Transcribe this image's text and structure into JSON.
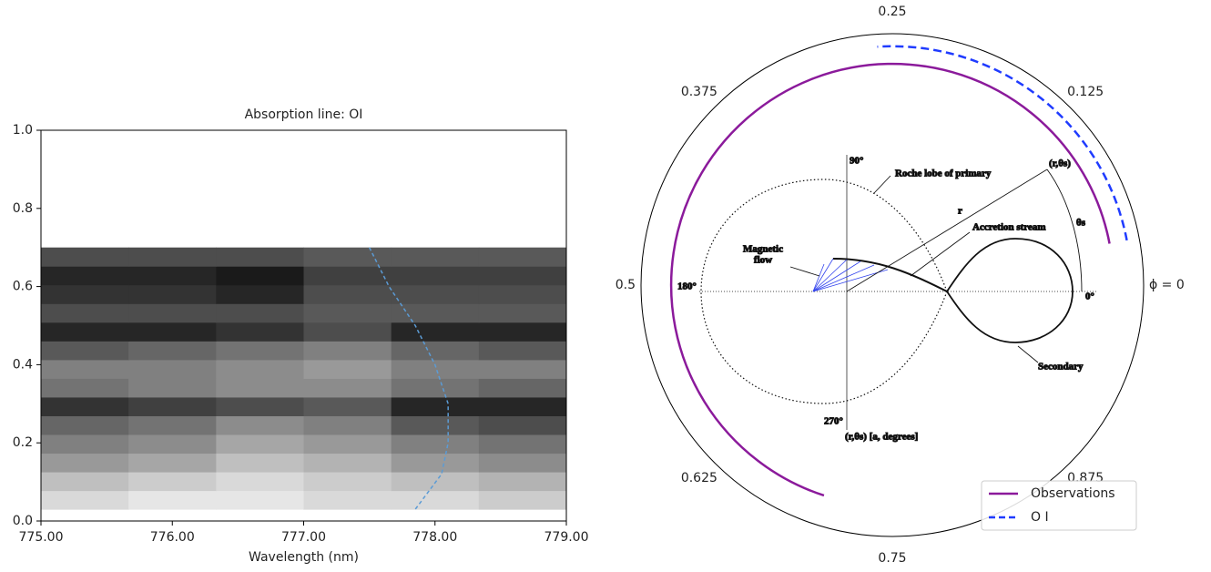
{
  "chart_data": [
    {
      "type": "image",
      "title": "Absorption line: OI",
      "x_label": "Wavelength (nm)",
      "xlim": [
        775,
        779
      ],
      "xticks": [
        {
          "value": 775,
          "label": "775.00"
        },
        {
          "value": 776,
          "label": "776.00"
        },
        {
          "value": 777,
          "label": "777.00"
        },
        {
          "value": 778,
          "label": "778.00"
        },
        {
          "value": 779,
          "label": "779.00"
        }
      ],
      "ylim": [
        0,
        1
      ],
      "yticks": [
        {
          "value": 0,
          "label": "0.0"
        },
        {
          "value": 0.2,
          "label": "0.2"
        },
        {
          "value": 0.4,
          "label": "0.4"
        },
        {
          "value": 0.6,
          "label": "0.6"
        },
        {
          "value": 0.8,
          "label": "0.8"
        },
        {
          "value": 1,
          "label": "1.0"
        }
      ],
      "extent": [
        775,
        779,
        0.03,
        0.7
      ],
      "zlim": [
        0,
        1
      ],
      "z": [
        [
          0.85,
          0.9,
          0.9,
          0.85,
          0.85,
          0.8
        ],
        [
          0.75,
          0.8,
          0.85,
          0.8,
          0.75,
          0.7
        ],
        [
          0.6,
          0.65,
          0.75,
          0.7,
          0.6,
          0.55
        ],
        [
          0.5,
          0.55,
          0.65,
          0.6,
          0.5,
          0.45
        ],
        [
          0.4,
          0.45,
          0.55,
          0.5,
          0.35,
          0.3
        ],
        [
          0.2,
          0.25,
          0.3,
          0.35,
          0.15,
          0.15
        ],
        [
          0.45,
          0.5,
          0.55,
          0.55,
          0.45,
          0.4
        ],
        [
          0.5,
          0.5,
          0.55,
          0.6,
          0.5,
          0.5
        ],
        [
          0.35,
          0.4,
          0.45,
          0.5,
          0.4,
          0.35
        ],
        [
          0.15,
          0.15,
          0.2,
          0.3,
          0.15,
          0.15
        ],
        [
          0.3,
          0.3,
          0.3,
          0.35,
          0.35,
          0.35
        ],
        [
          0.2,
          0.2,
          0.15,
          0.3,
          0.3,
          0.3
        ],
        [
          0.15,
          0.15,
          0.1,
          0.25,
          0.25,
          0.25
        ],
        [
          0.3,
          0.3,
          0.3,
          0.35,
          0.35,
          0.35
        ]
      ],
      "series": [
        {
          "color": "#5b9bd5",
          "linestyle": "dashed",
          "x": [
            777.5,
            777.65,
            777.85,
            778.0,
            778.1,
            778.1,
            778.05,
            777.85
          ],
          "values": [
            0.7,
            0.6,
            0.5,
            0.4,
            0.3,
            0.2,
            0.12,
            0.03
          ]
        }
      ]
    },
    {
      "type": "polar",
      "xticks": [
        {
          "value": 0,
          "label": "ϕ = 0"
        },
        0.125,
        0.25,
        0.375,
        0.5,
        0.625,
        0.75,
        0.875
      ],
      "ylim": [
        0,
        1
      ],
      "legend": "lower right",
      "series": [
        {
          "name": "Observations",
          "color": "#8b1a9b",
          "linestyle": "solid",
          "x": [
            0.03,
            0.7
          ],
          "values": [
            0.88,
            0.88
          ]
        },
        {
          "name": "O I",
          "color": "#1f3bff",
          "linestyle": "dashed",
          "x": [
            0.03,
            0.26
          ],
          "values": [
            0.95,
            0.95
          ]
        }
      ],
      "annotations": [
        "90°",
        "Roche lobe of primary",
        "(r,θs)",
        "r",
        "Accretion stream",
        "θs",
        "Magnetic",
        "flow",
        "180°",
        "0°",
        "270°",
        "Secondary",
        "(r,θs) [a, degrees]"
      ]
    }
  ]
}
